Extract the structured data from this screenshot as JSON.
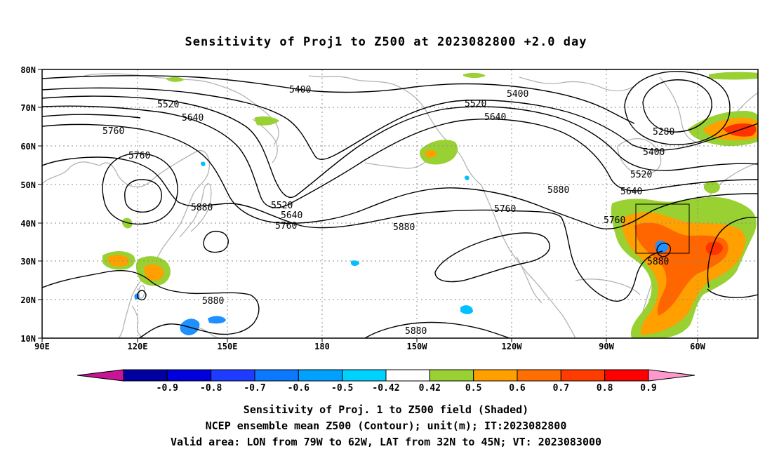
{
  "title": "Sensitivity of Proj1 to Z500 at 2023082800 +2.0 day",
  "map": {
    "lon_labels": [
      "90E",
      "120E",
      "150E",
      "180",
      "150W",
      "120W",
      "90W",
      "60W"
    ],
    "lat_labels": [
      "80N",
      "70N",
      "60N",
      "50N",
      "40N",
      "30N",
      "20N",
      "10N"
    ],
    "contour_labels": [
      "5400",
      "5400",
      "5280",
      "5400",
      "5520",
      "5520",
      "5640",
      "5640",
      "5760",
      "5760",
      "5880",
      "5880",
      "5520",
      "5640",
      "5760",
      "5880",
      "5760",
      "5760",
      "5640",
      "5520",
      "5880",
      "5880",
      "5880"
    ],
    "colors": {
      "land": "#b4b4b4",
      "contour": "#000000",
      "grid": "#8c8c8c",
      "green": "#99d133",
      "orange_light": "#ff9f00",
      "orange": "#ff6600",
      "red_orange": "#ff3300",
      "blue": "#1e90ff",
      "dark_blue": "#0000cc",
      "light_blue": "#00c0ff"
    }
  },
  "colorbar": {
    "labels": [
      "-0.9",
      "-0.8",
      "-0.7",
      "-0.6",
      "-0.5",
      "-0.42",
      "0.42",
      "0.5",
      "0.6",
      "0.7",
      "0.8",
      "0.9"
    ],
    "colors": [
      "#c81496",
      "#0000a0",
      "#0000dc",
      "#1e3cff",
      "#0a78ff",
      "#00a0ff",
      "#00d2ff",
      "#ffffff",
      "#99d133",
      "#ff9f00",
      "#ff6e00",
      "#ff3c00",
      "#ff0000",
      "#ff99cc"
    ]
  },
  "captions": {
    "line1": "Sensitivity of Proj. 1 to Z500 field (Shaded)",
    "line2": "NCEP ensemble mean Z500 (Contour); unit(m); IT:2023082800",
    "line3": "Valid area: LON from 79W to 62W, LAT from 32N to 45N; VT: 2023083000"
  }
}
